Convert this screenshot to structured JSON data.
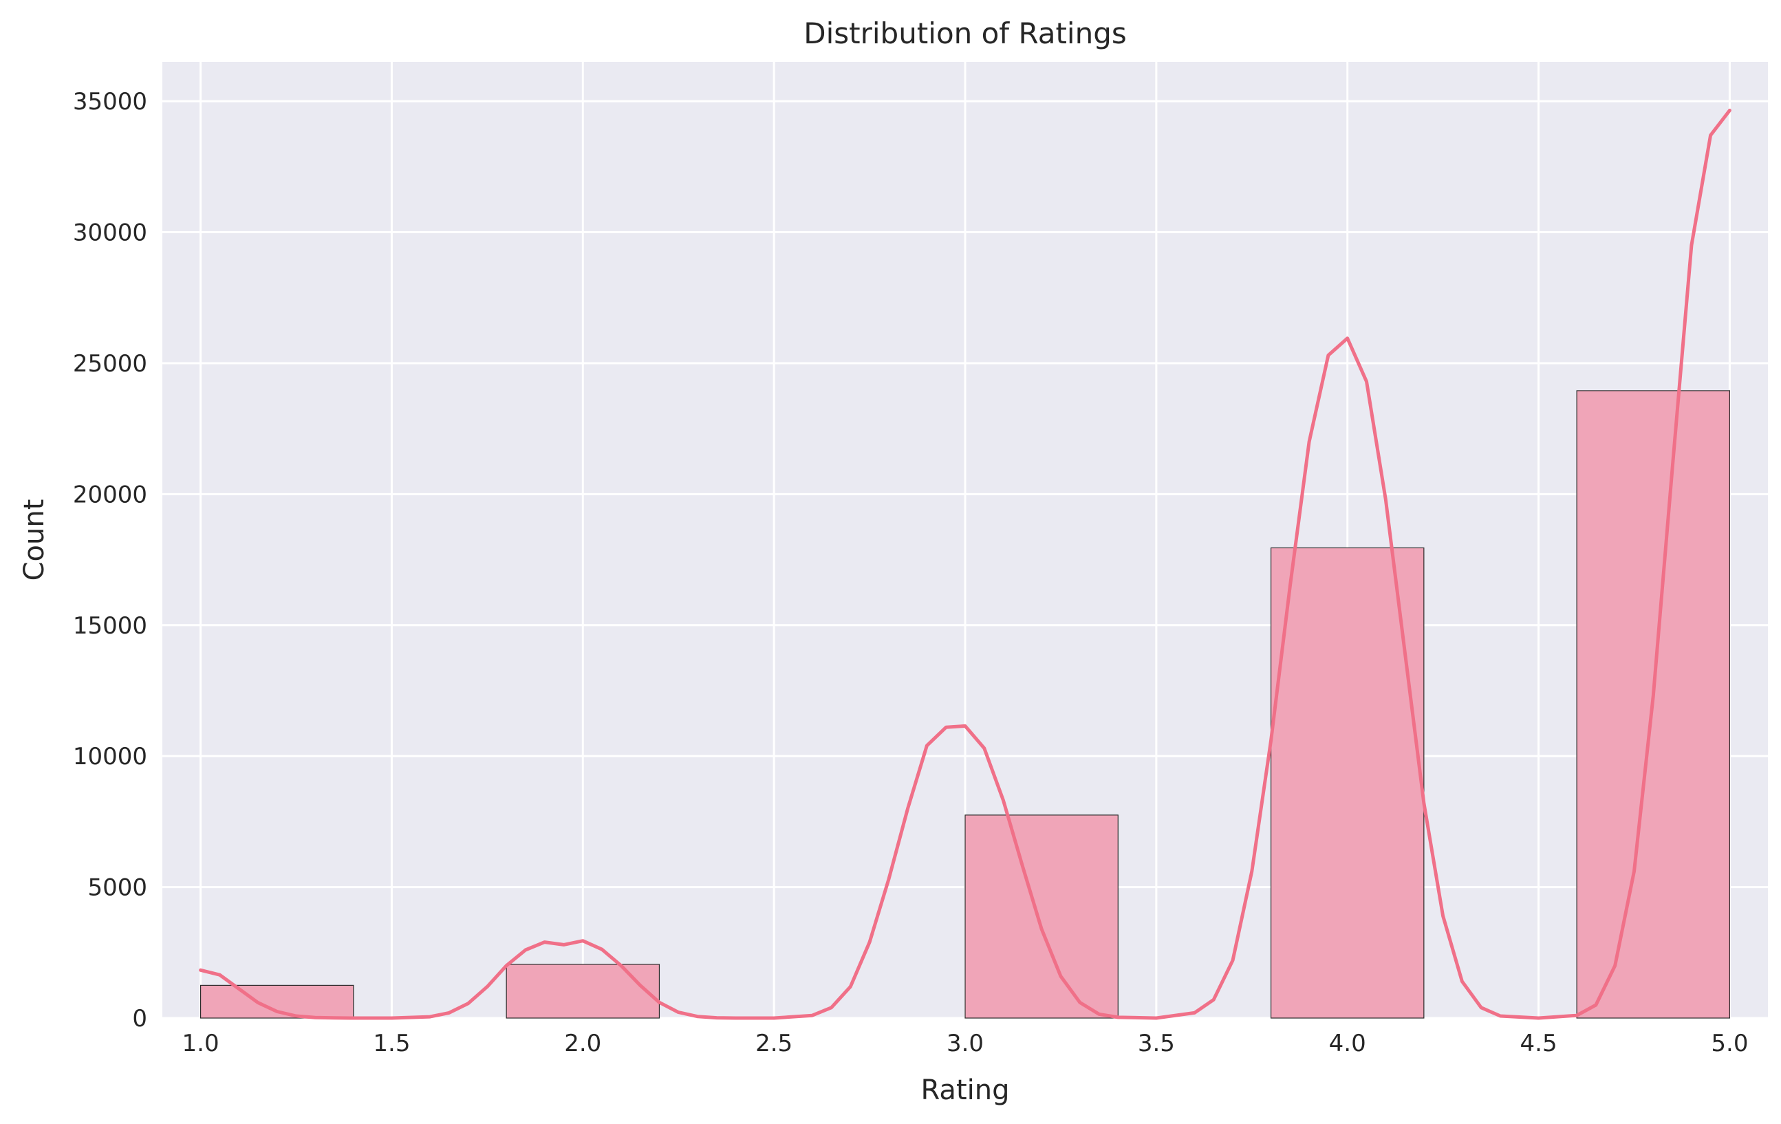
{
  "chart_data": {
    "type": "bar",
    "title": "Distribution of Ratings",
    "xlabel": "Rating",
    "ylabel": "Count",
    "xlim": [
      0.9,
      5.1
    ],
    "ylim": [
      0,
      36500
    ],
    "xticks": [
      "1.0",
      "1.5",
      "2.0",
      "2.5",
      "3.0",
      "3.5",
      "4.0",
      "4.5",
      "5.0"
    ],
    "yticks": [
      "0",
      "5000",
      "10000",
      "15000",
      "20000",
      "25000",
      "30000",
      "35000"
    ],
    "grid": true,
    "bins": [
      {
        "x_start": 1.0,
        "x_end": 1.4,
        "value": 1250
      },
      {
        "x_start": 1.8,
        "x_end": 2.2,
        "value": 2050
      },
      {
        "x_start": 3.0,
        "x_end": 3.4,
        "value": 7750
      },
      {
        "x_start": 3.8,
        "x_end": 4.2,
        "value": 17950
      },
      {
        "x_start": 4.6,
        "x_end": 5.0,
        "value": 23950
      }
    ],
    "kde_curve": {
      "x": [
        1.0,
        1.05,
        1.1,
        1.15,
        1.2,
        1.25,
        1.3,
        1.35,
        1.4,
        1.5,
        1.6,
        1.65,
        1.7,
        1.75,
        1.8,
        1.85,
        1.9,
        1.95,
        2.0,
        2.05,
        2.1,
        2.15,
        2.2,
        2.25,
        2.3,
        2.35,
        2.4,
        2.5,
        2.6,
        2.65,
        2.7,
        2.75,
        2.8,
        2.85,
        2.9,
        2.95,
        3.0,
        3.05,
        3.1,
        3.15,
        3.2,
        3.25,
        3.3,
        3.35,
        3.4,
        3.5,
        3.6,
        3.65,
        3.7,
        3.75,
        3.8,
        3.85,
        3.9,
        3.95,
        4.0,
        4.05,
        4.1,
        4.15,
        4.2,
        4.25,
        4.3,
        4.35,
        4.4,
        4.5,
        4.6,
        4.65,
        4.7,
        4.75,
        4.8,
        4.85,
        4.9,
        4.95,
        5.0
      ],
      "y": [
        1830,
        1650,
        1120,
        590,
        250,
        80,
        20,
        5,
        0,
        0,
        50,
        200,
        560,
        1200,
        2000,
        2600,
        2900,
        2800,
        2950,
        2620,
        2000,
        1250,
        600,
        220,
        60,
        10,
        0,
        0,
        100,
        400,
        1200,
        2900,
        5300,
        8000,
        10400,
        11100,
        11150,
        10300,
        8300,
        5800,
        3400,
        1600,
        600,
        150,
        30,
        0,
        200,
        700,
        2200,
        5600,
        10600,
        16500,
        22000,
        25300,
        25950,
        24300,
        19800,
        14000,
        8200,
        3900,
        1400,
        400,
        80,
        0,
        100,
        500,
        2000,
        5600,
        12300,
        21000,
        29500,
        33700,
        34650
      ]
    },
    "colors": {
      "background": "#eaeaf2",
      "grid": "#ffffff",
      "bar_fill": "#f0a5b8",
      "bar_edge": "#2a2a2a",
      "kde_line": "#f07088",
      "text": "#262626"
    }
  }
}
